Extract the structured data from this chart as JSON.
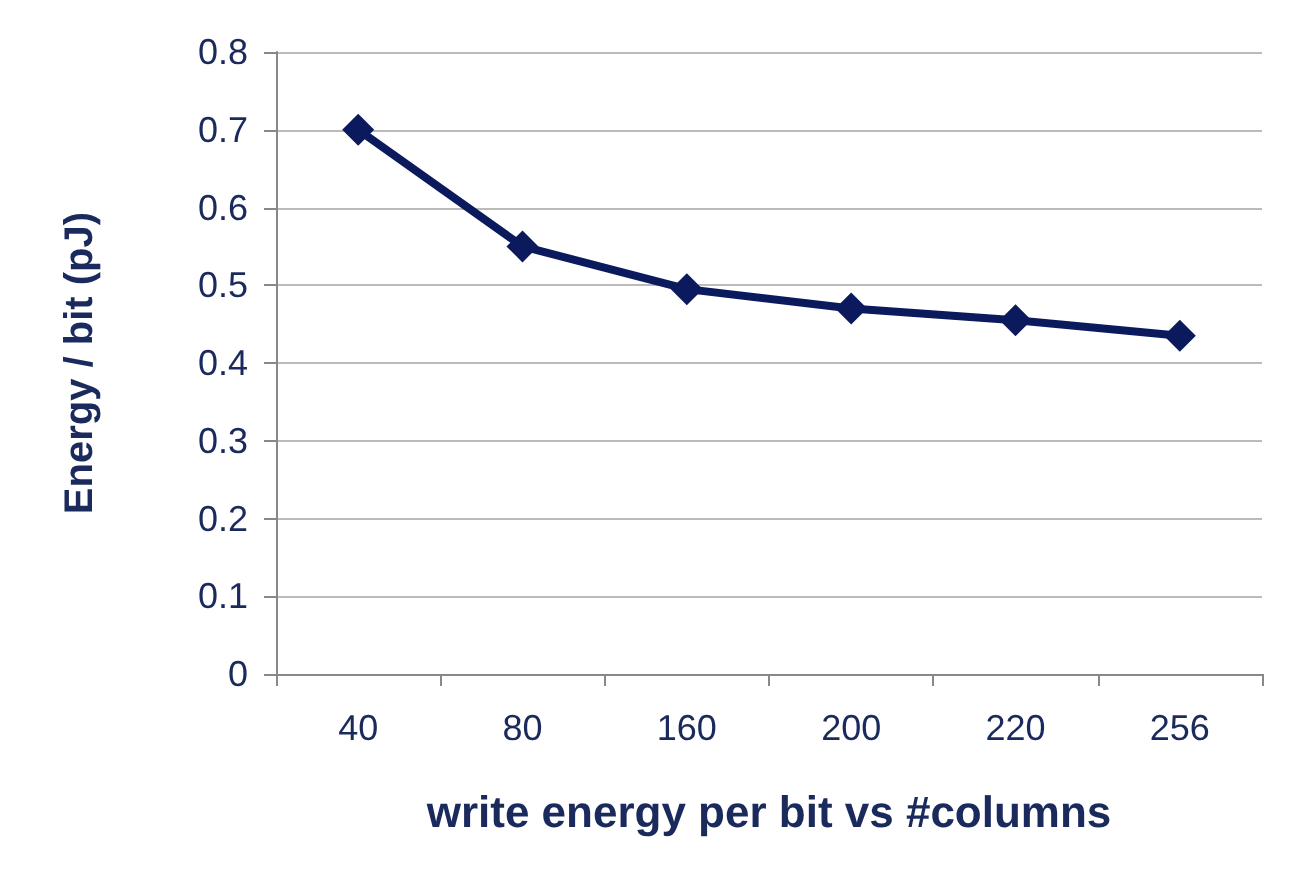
{
  "chart_data": {
    "type": "line",
    "xlabel": "write energy per bit vs #columns",
    "ylabel": "Energy / bit (pJ)",
    "categories": [
      "40",
      "80",
      "160",
      "200",
      "220",
      "256"
    ],
    "values": [
      0.7,
      0.55,
      0.495,
      0.47,
      0.455,
      0.435
    ],
    "color": "#0b1a5c",
    "ylim": [
      0,
      0.8
    ],
    "yticks": [
      0,
      0.1,
      0.2,
      0.3,
      0.4,
      0.5,
      0.6,
      0.7,
      0.8
    ],
    "grid": "y",
    "marker": "diamond",
    "line_style": "solid"
  }
}
